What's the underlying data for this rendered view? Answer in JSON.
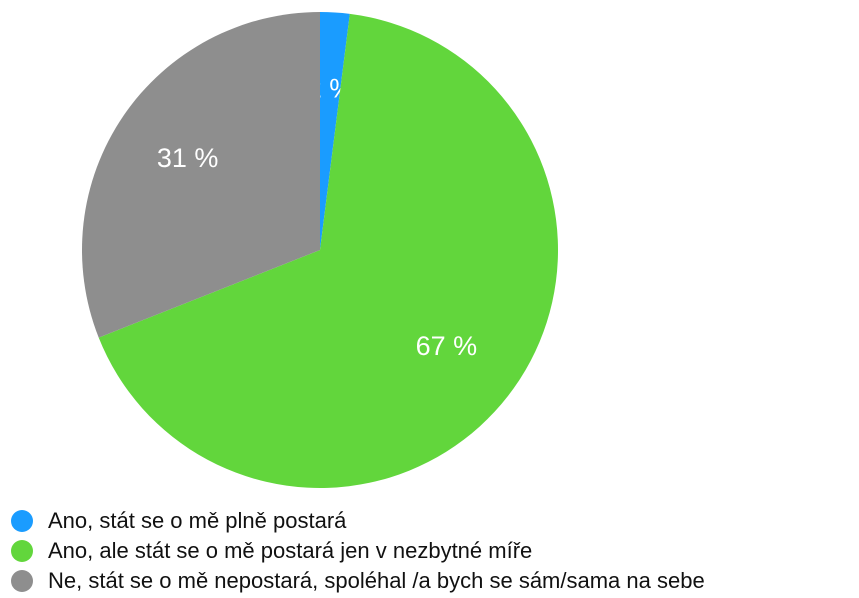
{
  "chart_data": {
    "type": "pie",
    "categories": [
      "Ano, stát se o mě plně postará",
      "Ano, ale stát se o mě postará jen v nezbytné míře",
      "Ne, stát se o mě nepostará, spoléhal /a bych se sám/sama na sebe"
    ],
    "values": [
      2,
      67,
      31
    ],
    "value_labels": [
      "2 %",
      "67 %",
      "31 %"
    ],
    "colors": [
      "#1a9cff",
      "#62d63c",
      "#8e8e8e"
    ]
  }
}
